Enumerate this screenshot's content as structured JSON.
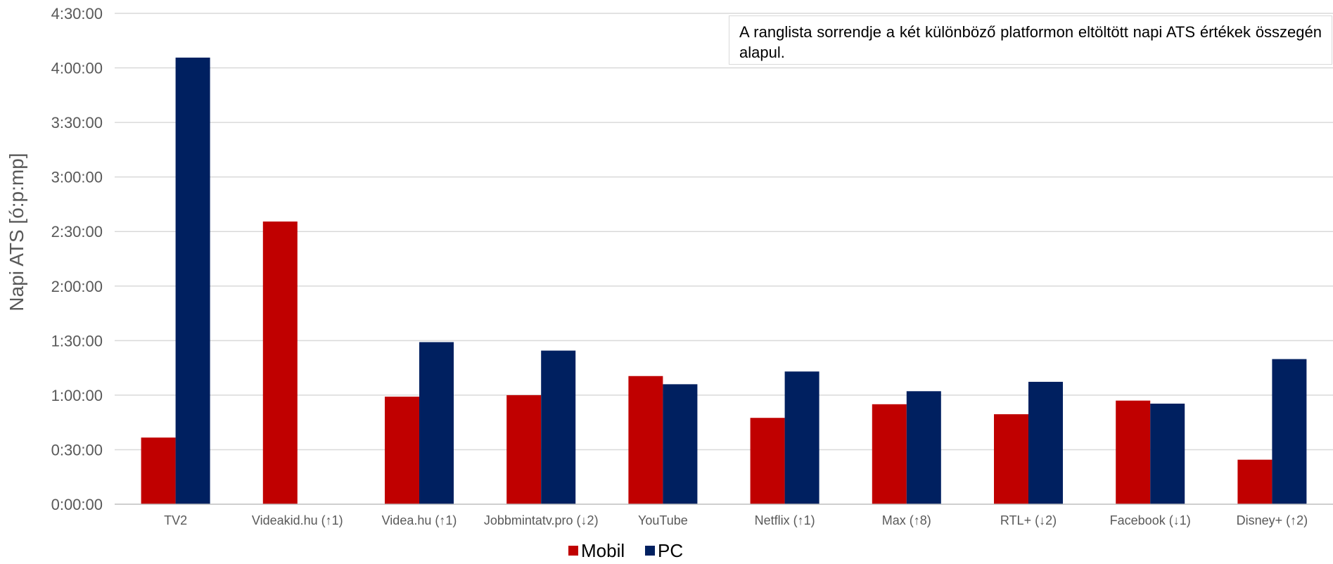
{
  "chart_data": {
    "type": "bar",
    "ylabel": "Napi ATS [ó:p:mp]",
    "xlabel": "",
    "title": "",
    "note": "A ranglista sorrendje a két különböző platformon eltöltött napi ATS értékek összegén alapul.",
    "y_unit": "seconds",
    "ylim": [
      0,
      16200
    ],
    "y_ticks": [
      0,
      1800,
      3600,
      5400,
      7200,
      9000,
      10800,
      12600,
      14400,
      16200
    ],
    "y_tick_labels": [
      "0:00:00",
      "0:30:00",
      "1:00:00",
      "1:30:00",
      "2:00:00",
      "2:30:00",
      "3:00:00",
      "3:30:00",
      "4:00:00",
      "4:30:00"
    ],
    "grid": true,
    "legend_position": "bottom",
    "categories": [
      "TV2",
      "Videakid.hu (↑1)",
      "Videa.hu (↑1)",
      "Jobbmintatv.pro (↓2)",
      "YouTube",
      "Netflix (↑1)",
      "Max (↑8)",
      "RTL+ (↓2)",
      "Facebook (↓1)",
      "Disney+ (↑2)"
    ],
    "series": [
      {
        "name": "Mobil",
        "color": "#c00000",
        "values": [
          2200,
          9330,
          3550,
          3600,
          4230,
          2850,
          3300,
          2970,
          3420,
          1470
        ]
      },
      {
        "name": "PC",
        "color": "#002060",
        "values": [
          14740,
          0,
          5350,
          5070,
          3960,
          4380,
          3730,
          4040,
          3320,
          4790
        ]
      }
    ]
  }
}
